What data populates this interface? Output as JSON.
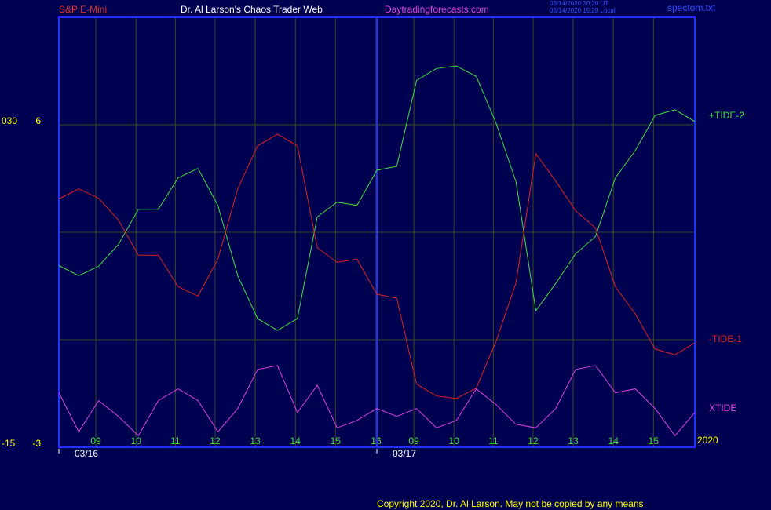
{
  "chart_data": {
    "type": "line",
    "title": "S&P E-Mini",
    "subtitle": "Dr. Al Larson's Chaos Trader Web",
    "site": "Daytradingforecasts.com",
    "timestamps": [
      "03/14/2020 20:20 UT",
      "03/14/2020 15:20 Local"
    ],
    "file": "spectom.txt",
    "copyright": "Copyright 2020, Dr. Al Larson. May not be copied by any means",
    "year": "2020",
    "x": [
      0,
      0.5,
      1,
      1.5,
      2,
      2.5,
      3,
      3.5,
      4,
      4.5,
      5,
      5.5,
      6,
      6.5,
      7,
      7.5,
      8,
      8.5,
      9,
      9.5,
      10,
      10.5,
      11,
      11.5,
      12,
      12.5,
      13,
      13.5,
      14,
      14.5,
      15,
      15.5,
      16
    ],
    "xlim": [
      0,
      16
    ],
    "xticks": [
      {
        "value": 0.93,
        "label": "09"
      },
      {
        "value": 1.94,
        "label": "10"
      },
      {
        "value": 2.93,
        "label": "11"
      },
      {
        "value": 3.93,
        "label": "12"
      },
      {
        "value": 4.94,
        "label": "13"
      },
      {
        "value": 5.95,
        "label": "14"
      },
      {
        "value": 6.96,
        "label": "15"
      },
      {
        "value": 7.98,
        "label": "16"
      },
      {
        "value": 8.93,
        "label": "09"
      },
      {
        "value": 9.94,
        "label": "10"
      },
      {
        "value": 10.93,
        "label": "11"
      },
      {
        "value": 11.93,
        "label": "12"
      },
      {
        "value": 12.94,
        "label": "13"
      },
      {
        "value": 13.95,
        "label": "14"
      },
      {
        "value": 14.96,
        "label": "15"
      }
    ],
    "days": [
      {
        "label": "03/16",
        "x": 0
      },
      {
        "label": "03/17",
        "x": 8
      }
    ],
    "ylim": [
      -3,
      9
    ],
    "yticks": [
      6,
      3,
      0,
      -3
    ],
    "ytick_labels_shown": [
      6,
      -3
    ],
    "y2lim": [
      -15,
      45
    ],
    "y2ticks": [
      {
        "value": 30,
        "label": "030"
      },
      -15
    ],
    "grid": true,
    "series": [
      {
        "name": "+TIDE-2",
        "color": "#40e040",
        "values": [
          2.07,
          1.79,
          2.05,
          2.66,
          3.64,
          3.64,
          4.52,
          4.78,
          3.75,
          1.79,
          0.59,
          0.26,
          0.59,
          3.43,
          3.84,
          3.75,
          4.73,
          4.84,
          7.24,
          7.57,
          7.64,
          7.35,
          6.04,
          4.41,
          0.81,
          1.57,
          2.4,
          2.88,
          4.52,
          5.28,
          6.26,
          6.42,
          6.09
        ]
      },
      {
        "name": "-TIDE-1",
        "color": "#e02020",
        "values": [
          3.93,
          4.21,
          3.95,
          3.34,
          2.36,
          2.36,
          1.48,
          1.22,
          2.25,
          4.21,
          5.41,
          5.74,
          5.41,
          2.57,
          2.16,
          2.25,
          1.27,
          1.16,
          -1.24,
          -1.57,
          -1.64,
          -1.35,
          -0.04,
          1.59,
          5.19,
          4.43,
          3.6,
          3.12,
          1.48,
          0.72,
          -0.26,
          -0.42,
          -0.09
        ]
      },
      {
        "name": "XTIDE",
        "color": "#e040e0",
        "values": [
          -1.48,
          -2.57,
          -1.7,
          -2.14,
          -2.68,
          -1.7,
          -1.37,
          -1.7,
          -2.57,
          -1.92,
          -0.83,
          -0.72,
          -2.03,
          -1.27,
          -2.46,
          -2.25,
          -1.92,
          -2.14,
          -1.92,
          -2.46,
          -2.25,
          -1.37,
          -1.81,
          -2.36,
          -2.46,
          -1.92,
          -0.83,
          -0.72,
          -1.48,
          -1.37,
          -1.92,
          -2.68,
          -2.03
        ]
      }
    ]
  }
}
